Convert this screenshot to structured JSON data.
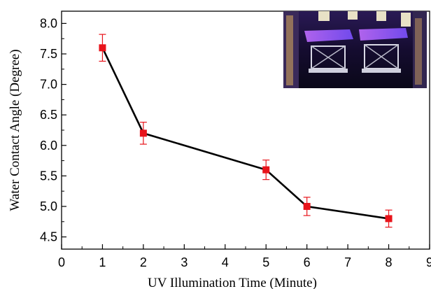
{
  "chart_data": {
    "type": "line",
    "title": "",
    "xlabel": "UV Illumination Time (Minute)",
    "ylabel": "Water Contact Angle (Degree)",
    "xlim": [
      0,
      9
    ],
    "ylim": [
      4.3,
      8.2
    ],
    "x_ticks": [
      0,
      1,
      2,
      3,
      4,
      5,
      6,
      7,
      8,
      9
    ],
    "y_ticks": [
      4.5,
      5.0,
      5.5,
      6.0,
      6.5,
      7.0,
      7.5,
      8.0
    ],
    "x_tick_labels": [
      "0",
      "1",
      "2",
      "3",
      "4",
      "5",
      "6",
      "7",
      "8",
      "9"
    ],
    "y_tick_labels": [
      "4.5",
      "5.0",
      "5.5",
      "6.0",
      "6.5",
      "7.0",
      "7.5",
      "8.0"
    ],
    "grid": false,
    "series": [
      {
        "x": [
          1,
          2,
          5,
          6,
          8
        ],
        "y": [
          7.6,
          6.2,
          5.6,
          5.0,
          4.8
        ],
        "error": [
          0.22,
          0.18,
          0.16,
          0.15,
          0.14
        ],
        "line_color": "#000000",
        "marker": "square",
        "marker_color": "#e8141b",
        "error_color": "#e8141b"
      }
    ],
    "inset": "photo of UV-illuminated sample holders"
  }
}
